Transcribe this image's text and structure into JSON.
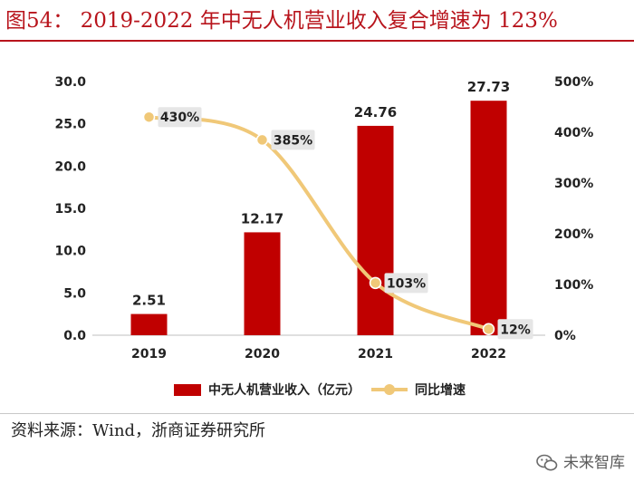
{
  "header": {
    "title": "图54：  2019-2022 年中无人机营业收入复合增速为 123%"
  },
  "chart_data": {
    "type": "bar",
    "combo": "bar+line",
    "categories": [
      "2019",
      "2020",
      "2021",
      "2022"
    ],
    "series": [
      {
        "name": "中无人机营业收入（亿元）",
        "type": "bar",
        "axis": "left",
        "values": [
          2.51,
          12.17,
          24.76,
          27.73
        ],
        "labels": [
          "2.51",
          "12.17",
          "24.76",
          "27.73"
        ],
        "color": "#c00000"
      },
      {
        "name": "同比增速",
        "type": "line",
        "axis": "right",
        "values": [
          430,
          385,
          103,
          12
        ],
        "labels": [
          "430%",
          "385%",
          "103%",
          "12%"
        ],
        "color": "#f0c878"
      }
    ],
    "y_left": {
      "min": 0,
      "max": 30,
      "ticks": [
        0,
        5,
        10,
        15,
        20,
        25,
        30
      ],
      "tick_labels": [
        "0.0",
        "5.0",
        "10.0",
        "15.0",
        "20.0",
        "25.0",
        "30.0"
      ]
    },
    "y_right": {
      "min": 0,
      "max": 500,
      "ticks": [
        0,
        100,
        200,
        300,
        400,
        500
      ],
      "tick_labels": [
        "0%",
        "100%",
        "200%",
        "300%",
        "400%",
        "500%"
      ]
    },
    "legend_position": "bottom"
  },
  "footer": {
    "source": "资料来源：Wind，浙商证券研究所",
    "watermark": "未来智库"
  },
  "colors": {
    "title": "#b8141c",
    "bar": "#c00000",
    "line": "#f0c878",
    "label_box": "#e6e6e6"
  }
}
